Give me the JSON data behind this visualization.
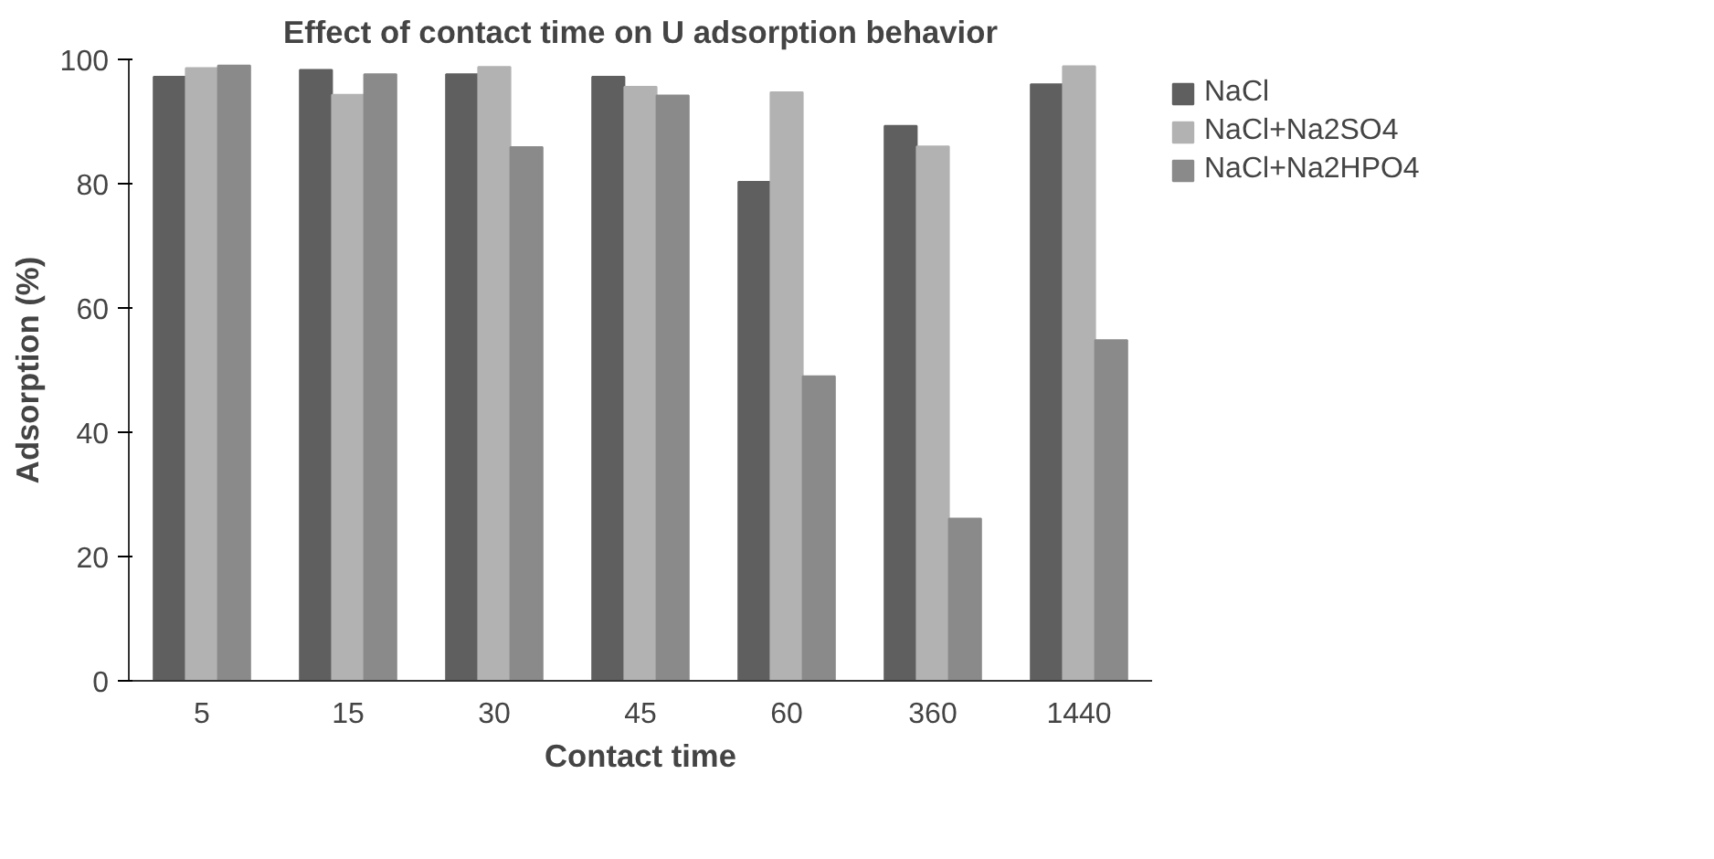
{
  "chart_data": {
    "type": "bar",
    "title": "Effect of contact time on U adsorption behavior",
    "xlabel": "Contact time",
    "ylabel": "Adsorption (%)",
    "categories": [
      "5",
      "15",
      "30",
      "45",
      "60",
      "360",
      "1440"
    ],
    "series": [
      {
        "name": "NaCl",
        "color": "#5f5f5f",
        "values": [
          97.2,
          98.3,
          97.6,
          97.2,
          80.3,
          89.3,
          96.0
        ]
      },
      {
        "name": "NaCl+Na2SO4",
        "color": "#b2b2b2",
        "values": [
          98.6,
          94.3,
          98.8,
          95.6,
          94.7,
          86.0,
          98.9
        ]
      },
      {
        "name": "NaCl+Na2HPO4",
        "color": "#8a8a8a",
        "values": [
          99.0,
          97.6,
          85.9,
          94.2,
          49.0,
          26.1,
          54.8
        ]
      }
    ],
    "ylim": [
      0,
      100
    ],
    "yticks": [
      0,
      20,
      40,
      60,
      80,
      100
    ],
    "grid": false,
    "legend": "right"
  }
}
